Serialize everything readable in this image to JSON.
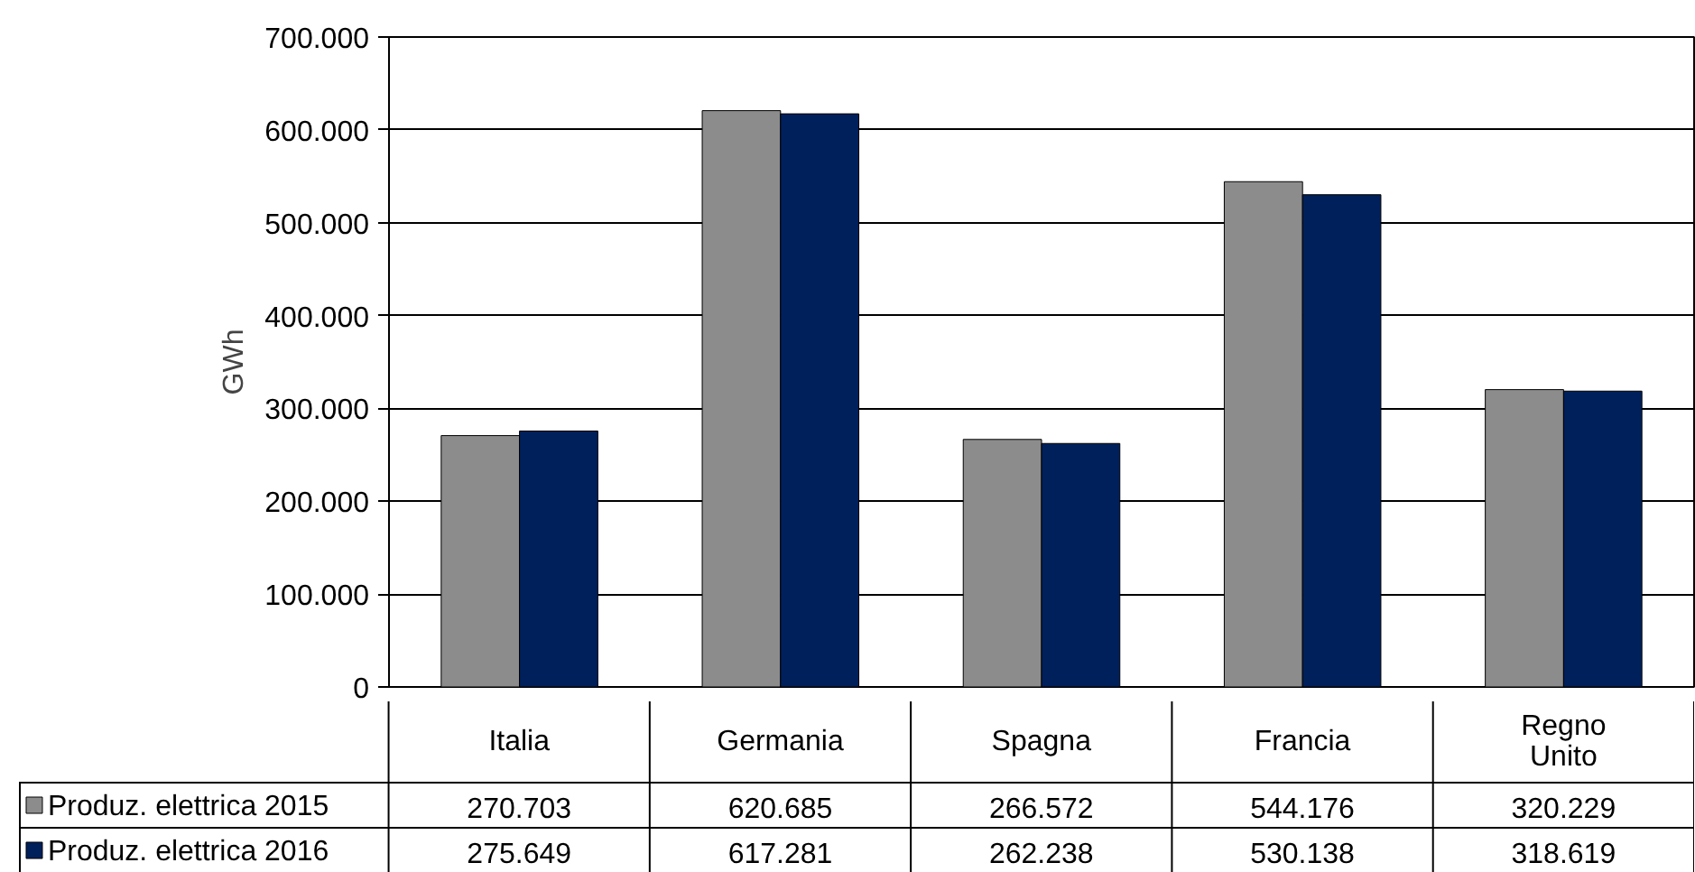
{
  "chart_data": {
    "type": "bar",
    "ylabel": "GWh",
    "categories": [
      "Italia",
      "Germania",
      "Spagna",
      "Francia",
      "Regno Unito"
    ],
    "series": [
      {
        "name": "Produz. elettrica 2015",
        "color": "#8c8c8c",
        "values": [
          270703,
          620685,
          266572,
          544176,
          320229
        ],
        "value_labels": [
          "270.703",
          "620.685",
          "266.572",
          "544.176",
          "320.229"
        ]
      },
      {
        "name": "Produz. elettrica 2016",
        "color": "#00205b",
        "values": [
          275649,
          617281,
          262238,
          530138,
          318619
        ],
        "value_labels": [
          "275.649",
          "617.281",
          "262.238",
          "530.138",
          "318.619"
        ]
      }
    ],
    "ylim": [
      0,
      700000
    ],
    "yticks": [
      {
        "value": 0,
        "label": "0"
      },
      {
        "value": 100000,
        "label": "100.000"
      },
      {
        "value": 200000,
        "label": "200.000"
      },
      {
        "value": 300000,
        "label": "300.000"
      },
      {
        "value": 400000,
        "label": "400.000"
      },
      {
        "value": 500000,
        "label": "500.000"
      },
      {
        "value": 600000,
        "label": "600.000"
      },
      {
        "value": 700000,
        "label": "700.000"
      }
    ],
    "grid": "y",
    "legend": "bottom"
  }
}
